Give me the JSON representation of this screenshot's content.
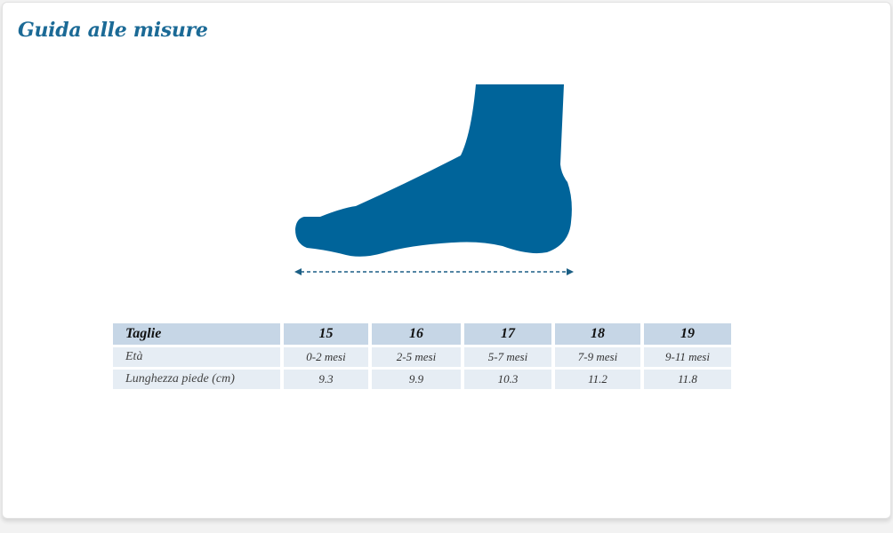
{
  "title": "Guida alle misure",
  "colors": {
    "accent": "#00649a",
    "title": "#1b6a96",
    "header_bg": "#c6d6e6",
    "row_bg": "#e6edf4"
  },
  "illustration": {
    "icon": "foot-side-silhouette",
    "measure": "dashed-double-arrow"
  },
  "table": {
    "header": [
      "Taglie",
      "15",
      "16",
      "17",
      "18",
      "19"
    ],
    "rows": [
      [
        "Età",
        "0-2 mesi",
        "2-5 mesi",
        "5-7 mesi",
        "7-9 mesi",
        "9-11 mesi"
      ],
      [
        "Lunghezza piede (cm)",
        "9.3",
        "9.9",
        "10.3",
        "11.2",
        "11.8"
      ]
    ]
  }
}
